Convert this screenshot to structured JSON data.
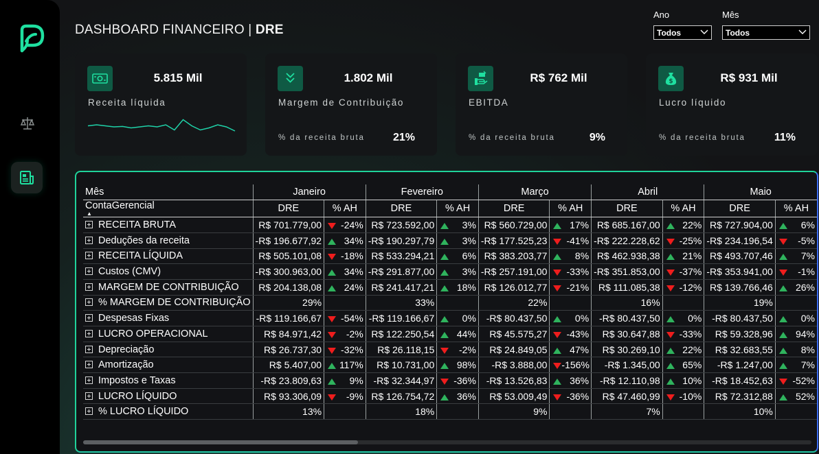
{
  "header": {
    "title_main": "DASHBOARD FINANCEIRO | ",
    "title_bold": "DRE"
  },
  "filters": [
    {
      "label": "Ano",
      "value": "Todos"
    },
    {
      "label": "Mês",
      "value": "Todos"
    }
  ],
  "sidebar": {
    "items": [
      {
        "icon": "logo-icon"
      },
      {
        "icon": "scale-icon"
      },
      {
        "icon": "report-icon",
        "active": true
      }
    ]
  },
  "kpis": [
    {
      "icon": "money-icon",
      "value": "5.815 Mil",
      "label": "Receita líquida",
      "sparkline": [
        0.55,
        0.6,
        0.55,
        0.5,
        0.52,
        0.45,
        0.5,
        0.55,
        0.5,
        0.6,
        0.35,
        0.85,
        0.55,
        0.35,
        0.45,
        0.6,
        0.5,
        0.3
      ]
    },
    {
      "icon": "chevrons-down-icon",
      "value": "1.802 Mil",
      "label": "Margem de Contribuição",
      "sub": "% da receita bruta",
      "pct": "21%"
    },
    {
      "icon": "hand-money-icon",
      "value": "R$ 762 Mil",
      "label": "EBITDA",
      "sub": "% da receita bruta",
      "pct": "9%"
    },
    {
      "icon": "money-bag-icon",
      "value": "R$ 931 Mil",
      "label": "Lucro líquido",
      "sub": "% da receita bruta",
      "pct": "11%"
    }
  ],
  "table": {
    "corner_top": "Mês",
    "corner_bottom": "ContaGerencial",
    "col_dre": "DRE",
    "col_ah": "% AH",
    "months": [
      "Janeiro",
      "Fevereiro",
      "Março",
      "Abril",
      "Maio"
    ],
    "rows": [
      {
        "name": "RECEITA BRUTA",
        "cells": [
          [
            "R$ 701.779,00",
            "down",
            "-24%"
          ],
          [
            "R$ 723.592,00",
            "up",
            "3%"
          ],
          [
            "R$ 560.729,00",
            "up",
            "17%"
          ],
          [
            "R$ 685.167,00",
            "up",
            "22%"
          ],
          [
            "R$ 727.904,00",
            "up",
            "6%"
          ]
        ]
      },
      {
        "name": "Deduções da receita",
        "cells": [
          [
            "-R$ 196.677,92",
            "up",
            "34%"
          ],
          [
            "-R$ 190.297,79",
            "up",
            "3%"
          ],
          [
            "-R$ 177.525,23",
            "down",
            "-41%"
          ],
          [
            "-R$ 222.228,62",
            "down",
            "-25%"
          ],
          [
            "-R$ 234.196,54",
            "down",
            "-5%"
          ]
        ]
      },
      {
        "name": "RECEITA LÍQUIDA",
        "cells": [
          [
            "R$ 505.101,08",
            "down",
            "-18%"
          ],
          [
            "R$ 533.294,21",
            "up",
            "6%"
          ],
          [
            "R$ 383.203,77",
            "up",
            "8%"
          ],
          [
            "R$ 462.938,38",
            "up",
            "21%"
          ],
          [
            "R$ 493.707,46",
            "up",
            "7%"
          ]
        ]
      },
      {
        "name": "Custos (CMV)",
        "cells": [
          [
            "-R$ 300.963,00",
            "up",
            "34%"
          ],
          [
            "-R$ 291.877,00",
            "up",
            "3%"
          ],
          [
            "-R$ 257.191,00",
            "down",
            "-33%"
          ],
          [
            "-R$ 351.853,00",
            "down",
            "-37%"
          ],
          [
            "-R$ 353.941,00",
            "down",
            "-1%"
          ]
        ]
      },
      {
        "name": "MARGEM DE CONTRIBUIÇÃO",
        "cells": [
          [
            "R$ 204.138,08",
            "up",
            "24%"
          ],
          [
            "R$ 241.417,21",
            "up",
            "18%"
          ],
          [
            "R$ 126.012,77",
            "down",
            "-21%"
          ],
          [
            "R$ 111.085,38",
            "down",
            "-12%"
          ],
          [
            "R$ 139.766,46",
            "up",
            "26%"
          ]
        ]
      },
      {
        "name": "% MARGEM DE CONTRIBUIÇÃO",
        "cells": [
          [
            "29%",
            "",
            ""
          ],
          [
            "33%",
            "",
            ""
          ],
          [
            "22%",
            "",
            ""
          ],
          [
            "16%",
            "",
            ""
          ],
          [
            "19%",
            "",
            ""
          ]
        ]
      },
      {
        "name": "Despesas Fixas",
        "cells": [
          [
            "-R$ 119.166,67",
            "down",
            "-54%"
          ],
          [
            "-R$ 119.166,67",
            "up",
            "0%"
          ],
          [
            "-R$ 80.437,50",
            "up",
            "0%"
          ],
          [
            "-R$ 80.437,50",
            "up",
            "0%"
          ],
          [
            "-R$ 80.437,50",
            "up",
            "0%"
          ]
        ]
      },
      {
        "name": "LUCRO OPERACIONAL",
        "cells": [
          [
            "R$ 84.971,42",
            "down",
            "-2%"
          ],
          [
            "R$ 122.250,54",
            "up",
            "44%"
          ],
          [
            "R$ 45.575,27",
            "down",
            "-43%"
          ],
          [
            "R$ 30.647,88",
            "down",
            "-33%"
          ],
          [
            "R$ 59.328,96",
            "up",
            "94%"
          ]
        ]
      },
      {
        "name": "Depreciação",
        "cells": [
          [
            "R$ 26.737,30",
            "down",
            "-32%"
          ],
          [
            "R$ 26.118,15",
            "down",
            "-2%"
          ],
          [
            "R$ 24.849,05",
            "up",
            "47%"
          ],
          [
            "R$ 30.269,10",
            "up",
            "22%"
          ],
          [
            "R$ 32.683,55",
            "up",
            "8%"
          ]
        ]
      },
      {
        "name": "Amortização",
        "cells": [
          [
            "R$ 5.407,00",
            "up",
            "117%"
          ],
          [
            "R$ 10.731,00",
            "up",
            "98%"
          ],
          [
            "-R$ 3.888,00",
            "down",
            "-156%"
          ],
          [
            "-R$ 1.345,00",
            "up",
            "65%"
          ],
          [
            "-R$ 1.247,00",
            "up",
            "7%"
          ]
        ]
      },
      {
        "name": "Impostos e Taxas",
        "cells": [
          [
            "-R$ 23.809,63",
            "up",
            "9%"
          ],
          [
            "-R$ 32.344,97",
            "down",
            "-36%"
          ],
          [
            "-R$ 13.526,83",
            "up",
            "36%"
          ],
          [
            "-R$ 12.110,98",
            "up",
            "10%"
          ],
          [
            "-R$ 18.452,63",
            "down",
            "-52%"
          ]
        ]
      },
      {
        "name": "LUCRO LÍQUIDO",
        "cells": [
          [
            "R$ 93.306,09",
            "down",
            "-9%"
          ],
          [
            "R$ 126.754,72",
            "up",
            "36%"
          ],
          [
            "R$ 53.009,49",
            "down",
            "-36%"
          ],
          [
            "R$ 47.460,99",
            "down",
            "-10%"
          ],
          [
            "R$ 72.312,88",
            "up",
            "52%"
          ]
        ]
      },
      {
        "name": "% LUCRO LÍQUIDO",
        "cells": [
          [
            "13%",
            "",
            ""
          ],
          [
            "18%",
            "",
            ""
          ],
          [
            "9%",
            "",
            ""
          ],
          [
            "7%",
            "",
            ""
          ],
          [
            "10%",
            "",
            ""
          ]
        ]
      }
    ]
  },
  "colors": {
    "accent": "#1fd39a",
    "up": "#2fb35d",
    "down": "#ee1d1d",
    "icon_bg": "#0f5a44"
  }
}
